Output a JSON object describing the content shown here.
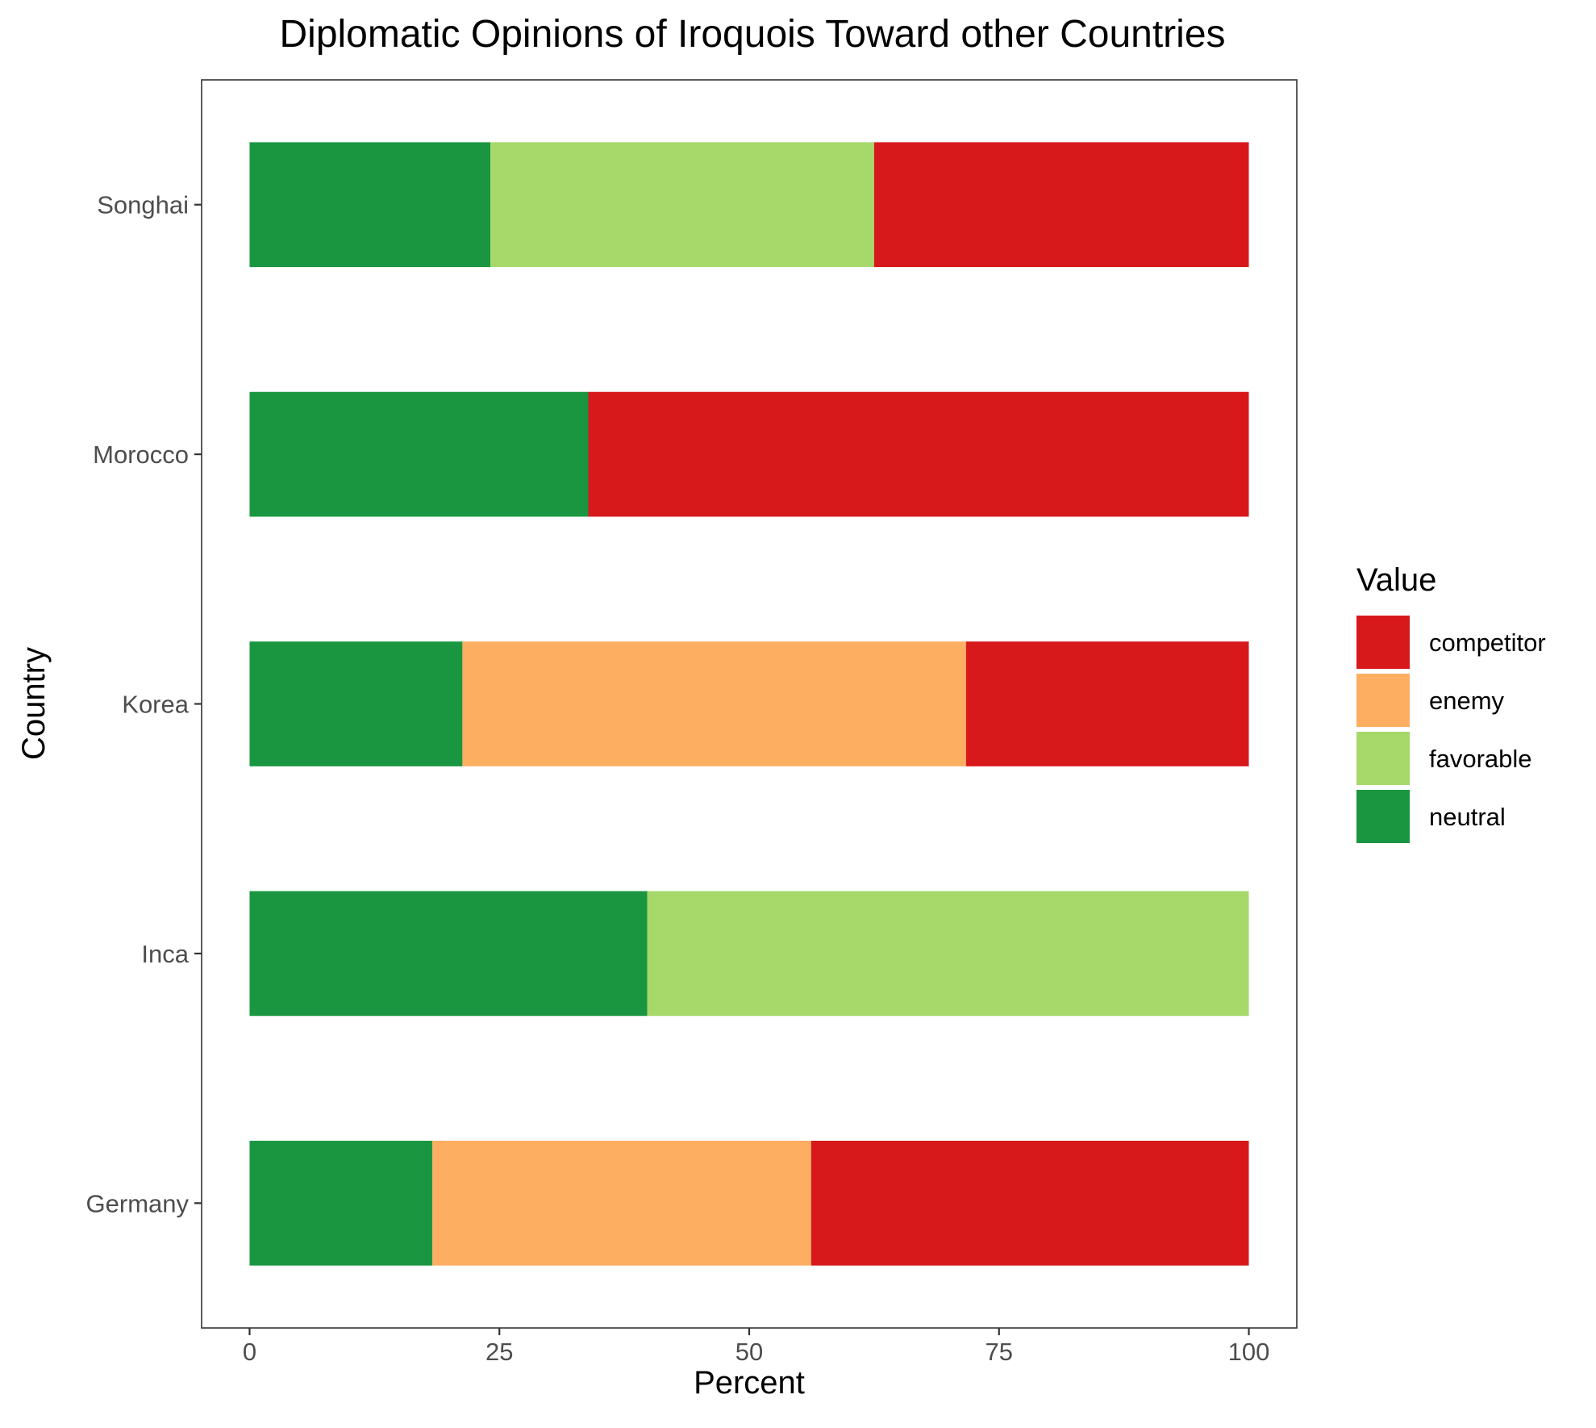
{
  "chart_data": {
    "type": "bar",
    "orientation": "horizontal",
    "stacked": true,
    "title": "Diplomatic Opinions of Iroquois Toward other Countries",
    "xlabel": "Percent",
    "ylabel": "Country",
    "xlim": [
      -4.8,
      104.8
    ],
    "x_ticks": [
      0,
      25,
      50,
      75,
      100
    ],
    "x_tick_labels": [
      "0",
      "25",
      "50",
      "75",
      "100"
    ],
    "categories": [
      "Germany",
      "Inca",
      "Korea",
      "Morocco",
      "Songhai"
    ],
    "grid": false,
    "legend": {
      "title": "Value",
      "position": "right",
      "entries": [
        "competitor",
        "enemy",
        "favorable",
        "neutral"
      ]
    },
    "stack_order_from_zero": [
      "neutral",
      "favorable",
      "enemy",
      "competitor"
    ],
    "series": [
      {
        "name": "competitor",
        "color": "#d7191c",
        "values": [
          43.8,
          0,
          28.3,
          66.1,
          37.5
        ]
      },
      {
        "name": "enemy",
        "color": "#fdae61",
        "values": [
          37.9,
          0,
          50.4,
          0,
          0
        ]
      },
      {
        "name": "favorable",
        "color": "#a6d96a",
        "values": [
          0,
          60.2,
          0,
          0,
          38.4
        ]
      },
      {
        "name": "neutral",
        "color": "#1a9641",
        "values": [
          18.3,
          39.8,
          21.3,
          33.9,
          24.1
        ]
      }
    ]
  }
}
